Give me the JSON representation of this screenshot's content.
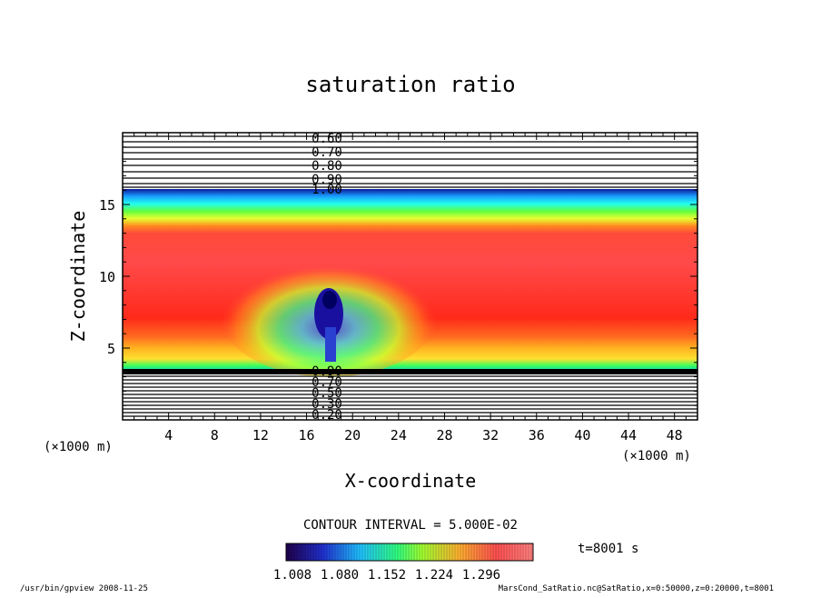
{
  "chart_data": {
    "type": "heatmap",
    "title": "saturation ratio",
    "xlabel": "X-coordinate",
    "ylabel": "Z-coordinate",
    "x_unit": "(×1000 m)",
    "y_unit": "(×1000 m)",
    "xlim": [
      0,
      50
    ],
    "ylim": [
      0,
      20
    ],
    "x_ticks": [
      4,
      8,
      12,
      16,
      20,
      24,
      28,
      32,
      36,
      40,
      44,
      48
    ],
    "y_ticks": [
      5,
      10,
      15
    ],
    "upper_contour_labels": [
      "0.60",
      "0.70",
      "0.80",
      "0.90",
      "1.00"
    ],
    "lower_contour_labels": [
      "0.20",
      "0.30",
      "0.50",
      "0.70",
      "0.90"
    ],
    "contour_interval": "CONTOUR INTERVAL = 5.000E-02",
    "time_label": "t=8001 s",
    "colorbar_ticks": [
      "1.008",
      "1.080",
      "1.152",
      "1.224",
      "1.296"
    ],
    "colorbar_range": [
      1.008,
      1.296
    ]
  },
  "footer": {
    "left": "/usr/bin/gpview   2008-11-25",
    "right": "MarsCond_SatRatio.nc@SatRatio,x=0:50000,z=0:20000,t=8001"
  }
}
